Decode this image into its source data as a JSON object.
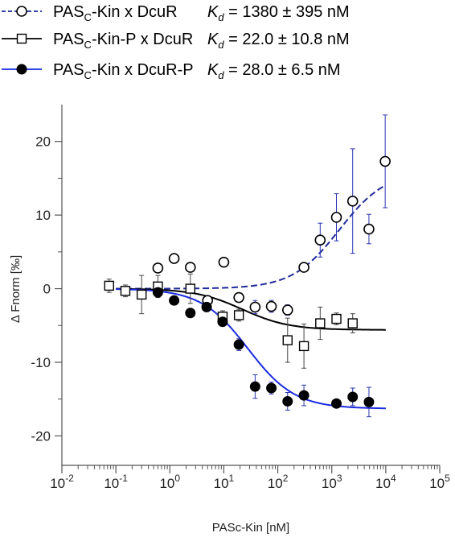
{
  "chart_data": {
    "type": "scatter",
    "xlabel": "PASc-Kin [nM]",
    "ylabel": "Δ Fnorm [‰]",
    "xscale": "log",
    "xlim": [
      0.01,
      100000
    ],
    "ylim": [
      -24,
      25
    ],
    "x_ticks": [
      {
        "value": 0.01,
        "base": "10",
        "exp": "-2"
      },
      {
        "value": 0.1,
        "base": "10",
        "exp": "-1"
      },
      {
        "value": 1,
        "base": "10",
        "exp": "0"
      },
      {
        "value": 10,
        "base": "10",
        "exp": "1"
      },
      {
        "value": 100,
        "base": "10",
        "exp": "2"
      },
      {
        "value": 1000,
        "base": "10",
        "exp": "3"
      },
      {
        "value": 10000,
        "base": "10",
        "exp": "4"
      },
      {
        "value": 100000,
        "base": "10",
        "exp": "5"
      }
    ],
    "y_ticks": [
      {
        "value": 20,
        "label": "20"
      },
      {
        "value": 10,
        "label": "10"
      },
      {
        "value": 0,
        "label": "0"
      },
      {
        "value": -10,
        "label": "-10"
      },
      {
        "value": -20,
        "label": "-20"
      }
    ],
    "grid": false,
    "legend_position": "top-left",
    "series": [
      {
        "name_main": "PAS",
        "name_sub": "C",
        "name_rest": "-Kin x DcuR",
        "kd_value": " = 1380 ± 395 nM",
        "marker": "open-circle",
        "line_style": "dashed",
        "line_color": "#1f2a9a",
        "fit": {
          "top": 0,
          "bottom": 16,
          "kd": 1380
        },
        "points": [
          {
            "x": 0.6,
            "y": 2.8,
            "err": 0.5
          },
          {
            "x": 1.2,
            "y": 4.1,
            "err": 0.6
          },
          {
            "x": 2.4,
            "y": 2.9,
            "err": 0.4
          },
          {
            "x": 10,
            "y": 3.6,
            "err": 0.5
          },
          {
            "x": 5,
            "y": -1.6,
            "err": 0.5
          },
          {
            "x": 19,
            "y": -1.2,
            "err": 0.5
          },
          {
            "x": 38,
            "y": -2.5,
            "err": 0.9
          },
          {
            "x": 76,
            "y": -2.4,
            "err": 0.8
          },
          {
            "x": 152,
            "y": -2.9,
            "err": 0.7
          },
          {
            "x": 305,
            "y": 2.9,
            "err": 0.6
          },
          {
            "x": 610,
            "y": 6.6,
            "err": 2.3
          },
          {
            "x": 1220,
            "y": 9.7,
            "err": 3.2
          },
          {
            "x": 2440,
            "y": 11.9,
            "err": 7.1
          },
          {
            "x": 4880,
            "y": 8.1,
            "err": 2.0
          },
          {
            "x": 9760,
            "y": 17.3,
            "err": 6.3
          }
        ]
      },
      {
        "name_main": "PAS",
        "name_sub": "C",
        "name_rest": "-Kin-P x DcuR",
        "kd_value": " = 22.0 ± 10.8 nM",
        "marker": "open-square",
        "line_style": "solid",
        "line_color": "#000000",
        "fit": {
          "top": 0,
          "bottom": -5.6,
          "kd": 22
        },
        "points": [
          {
            "x": 0.075,
            "y": 0.4,
            "err": 0.9
          },
          {
            "x": 0.15,
            "y": -0.3,
            "err": 0.8
          },
          {
            "x": 0.3,
            "y": -0.8,
            "err": 2.6
          },
          {
            "x": 0.6,
            "y": 0.3,
            "err": 1.5
          },
          {
            "x": 2.4,
            "y": 0.0,
            "err": 2.0
          },
          {
            "x": 9.5,
            "y": -3.8,
            "err": 0.8
          },
          {
            "x": 19,
            "y": -3.6,
            "err": 0.8
          },
          {
            "x": 152,
            "y": -7.0,
            "err": 3.0
          },
          {
            "x": 305,
            "y": -7.8,
            "err": 3.0
          },
          {
            "x": 610,
            "y": -4.7,
            "err": 2.2
          },
          {
            "x": 1220,
            "y": -4.1,
            "err": 0.8
          },
          {
            "x": 2440,
            "y": -4.7,
            "err": 1.3
          }
        ]
      },
      {
        "name_main": "PAS",
        "name_sub": "C",
        "name_rest": "-Kin x DcuR-P",
        "kd_value": " = 28.0 ± 6.5 nM",
        "marker": "filled-circle",
        "line_style": "solid",
        "line_color": "#1a2be0",
        "fit": {
          "top": 0,
          "bottom": -16.3,
          "kd": 28
        },
        "points": [
          {
            "x": 0.6,
            "y": -0.5,
            "err": 0.5
          },
          {
            "x": 1.2,
            "y": -1.6,
            "err": 0.6
          },
          {
            "x": 2.4,
            "y": -3.3,
            "err": 0.5
          },
          {
            "x": 4.8,
            "y": -2.5,
            "err": 0.6
          },
          {
            "x": 9.5,
            "y": -4.5,
            "err": 0.6
          },
          {
            "x": 19,
            "y": -7.6,
            "err": 0.8
          },
          {
            "x": 38,
            "y": -13.3,
            "err": 1.6
          },
          {
            "x": 76,
            "y": -13.5,
            "err": 0.8
          },
          {
            "x": 152,
            "y": -15.3,
            "err": 1.2
          },
          {
            "x": 305,
            "y": -14.5,
            "err": 1.4
          },
          {
            "x": 1220,
            "y": -15.6,
            "err": 0.5
          },
          {
            "x": 2440,
            "y": -14.7,
            "err": 1.2
          },
          {
            "x": 4880,
            "y": -15.4,
            "err": 2.0
          }
        ]
      }
    ]
  }
}
